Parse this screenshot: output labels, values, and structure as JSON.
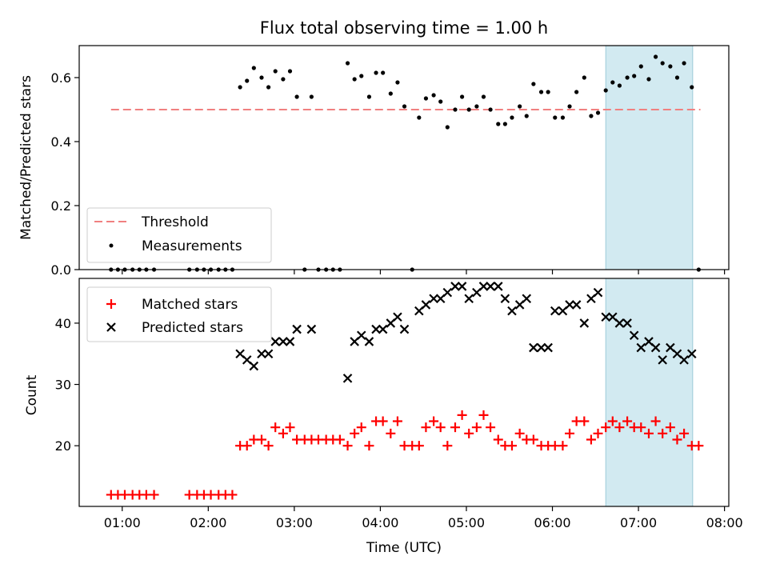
{
  "title": "Flux total observing time = 1.00 h",
  "colors": {
    "threshold": "#f08080",
    "measurements": "#000000",
    "matched": "#ff0000",
    "predicted": "#000000",
    "highlight": "#add8e6"
  },
  "chart_data": [
    {
      "type": "scatter",
      "panel": "top",
      "ylabel": "Matched/Predicted stars",
      "xlim": [
        0.5,
        8.05
      ],
      "ylim": [
        0,
        0.7
      ],
      "yticks": [
        0.0,
        0.2,
        0.4,
        0.6
      ],
      "ytick_labels": [
        "0.0",
        "0.2",
        "0.4",
        "0.6"
      ],
      "highlight_span": [
        6.62,
        7.63
      ],
      "legend_position": "lower-left",
      "threshold": {
        "name": "Threshold",
        "y": 0.5,
        "x_range": [
          0.87,
          7.72
        ]
      },
      "series": [
        {
          "name": "Measurements",
          "x": [
            0.87,
            0.95,
            1.03,
            1.12,
            1.2,
            1.28,
            1.37,
            1.78,
            1.87,
            1.95,
            2.03,
            2.12,
            2.2,
            2.28,
            2.37,
            2.45,
            2.53,
            2.62,
            2.7,
            2.78,
            2.87,
            2.95,
            3.03,
            3.12,
            3.2,
            3.28,
            3.37,
            3.45,
            3.53,
            3.62,
            3.7,
            3.78,
            3.87,
            3.95,
            4.03,
            4.12,
            4.2,
            4.28,
            4.37,
            4.45,
            4.53,
            4.62,
            4.7,
            4.78,
            4.87,
            4.95,
            5.03,
            5.12,
            5.2,
            5.28,
            5.37,
            5.45,
            5.53,
            5.62,
            5.7,
            5.78,
            5.87,
            5.95,
            6.03,
            6.12,
            6.2,
            6.28,
            6.37,
            6.45,
            6.53,
            6.62,
            6.7,
            6.78,
            6.87,
            6.95,
            7.03,
            7.12,
            7.2,
            7.28,
            7.37,
            7.45,
            7.53,
            7.62,
            7.7
          ],
          "y": [
            0,
            0,
            0,
            0,
            0,
            0,
            0,
            0,
            0,
            0,
            0,
            0,
            0,
            0,
            0.57,
            0.59,
            0.63,
            0.6,
            0.57,
            0.62,
            0.595,
            0.62,
            0.54,
            0,
            0.54,
            0,
            0,
            0,
            0,
            0.645,
            0.595,
            0.605,
            0.54,
            0.615,
            0.615,
            0.55,
            0.585,
            0.51,
            0,
            0.475,
            0.535,
            0.545,
            0.525,
            0.445,
            0.5,
            0.54,
            0.5,
            0.51,
            0.54,
            0.5,
            0.455,
            0.455,
            0.475,
            0.51,
            0.48,
            0.58,
            0.555,
            0.555,
            0.475,
            0.475,
            0.51,
            0.555,
            0.6,
            0.48,
            0.49,
            0.56,
            0.585,
            0.575,
            0.6,
            0.605,
            0.635,
            0.595,
            0.665,
            0.645,
            0.635,
            0.6,
            0.645,
            0.57,
            0
          ]
        }
      ]
    },
    {
      "type": "scatter",
      "panel": "bottom",
      "xlabel": "Time (UTC)",
      "ylabel": "Count",
      "xlim": [
        0.5,
        8.05
      ],
      "ylim": [
        10.1,
        47.3
      ],
      "yticks": [
        20,
        30,
        40
      ],
      "ytick_labels": [
        "20",
        "30",
        "40"
      ],
      "xticks": [
        1,
        2,
        3,
        4,
        5,
        6,
        7,
        8
      ],
      "xtick_labels": [
        "01:00",
        "02:00",
        "03:00",
        "04:00",
        "05:00",
        "06:00",
        "07:00",
        "08:00"
      ],
      "highlight_span": [
        6.62,
        7.63
      ],
      "legend_position": "upper-left",
      "series": [
        {
          "name": "Matched stars",
          "marker": "plus",
          "x": [
            0.87,
            0.95,
            1.03,
            1.12,
            1.2,
            1.28,
            1.37,
            1.78,
            1.87,
            1.95,
            2.03,
            2.12,
            2.2,
            2.28,
            2.37,
            2.45,
            2.53,
            2.62,
            2.7,
            2.78,
            2.87,
            2.95,
            3.03,
            3.12,
            3.2,
            3.28,
            3.37,
            3.45,
            3.53,
            3.62,
            3.7,
            3.78,
            3.87,
            3.95,
            4.03,
            4.12,
            4.2,
            4.28,
            4.37,
            4.45,
            4.53,
            4.62,
            4.7,
            4.78,
            4.87,
            4.95,
            5.03,
            5.12,
            5.2,
            5.28,
            5.37,
            5.45,
            5.53,
            5.62,
            5.7,
            5.78,
            5.87,
            5.95,
            6.03,
            6.12,
            6.2,
            6.28,
            6.37,
            6.45,
            6.53,
            6.62,
            6.7,
            6.78,
            6.87,
            6.95,
            7.03,
            7.12,
            7.2,
            7.28,
            7.37,
            7.45,
            7.53,
            7.62,
            7.7
          ],
          "y": [
            12,
            12,
            12,
            12,
            12,
            12,
            12,
            12,
            12,
            12,
            12,
            12,
            12,
            12,
            20,
            20,
            21,
            21,
            20,
            23,
            22,
            23,
            21,
            21,
            21,
            21,
            21,
            21,
            21,
            20,
            22,
            23,
            20,
            24,
            24,
            22,
            24,
            20,
            20,
            20,
            23,
            24,
            23,
            20,
            23,
            25,
            22,
            23,
            25,
            23,
            21,
            20,
            20,
            22,
            21,
            21,
            20,
            20,
            20,
            20,
            22,
            24,
            24,
            21,
            22,
            23,
            24,
            23,
            24,
            23,
            23,
            22,
            24,
            22,
            23,
            21,
            22,
            20,
            20
          ]
        },
        {
          "name": "Predicted stars",
          "marker": "x",
          "x": [
            2.37,
            2.45,
            2.53,
            2.62,
            2.7,
            2.78,
            2.87,
            2.95,
            3.03,
            3.2,
            3.62,
            3.7,
            3.78,
            3.87,
            3.95,
            4.03,
            4.12,
            4.2,
            4.28,
            4.45,
            4.53,
            4.62,
            4.7,
            4.78,
            4.87,
            4.95,
            5.03,
            5.12,
            5.2,
            5.28,
            5.37,
            5.45,
            5.53,
            5.62,
            5.7,
            5.78,
            5.87,
            5.95,
            6.03,
            6.12,
            6.2,
            6.28,
            6.37,
            6.45,
            6.53,
            6.62,
            6.7,
            6.78,
            6.87,
            6.95,
            7.03,
            7.12,
            7.2,
            7.28,
            7.37,
            7.45,
            7.53,
            7.62
          ],
          "y": [
            35,
            34,
            33,
            35,
            35,
            37,
            37,
            37,
            39,
            39,
            31,
            37,
            38,
            37,
            39,
            39,
            40,
            41,
            39,
            42,
            43,
            44,
            44,
            45,
            46,
            46,
            44,
            45,
            46,
            46,
            46,
            44,
            42,
            43,
            44,
            36,
            36,
            36,
            42,
            42,
            43,
            43,
            40,
            44,
            45,
            41,
            41,
            40,
            40,
            38,
            36,
            37,
            36,
            34,
            36,
            35,
            34,
            35
          ]
        }
      ]
    }
  ]
}
